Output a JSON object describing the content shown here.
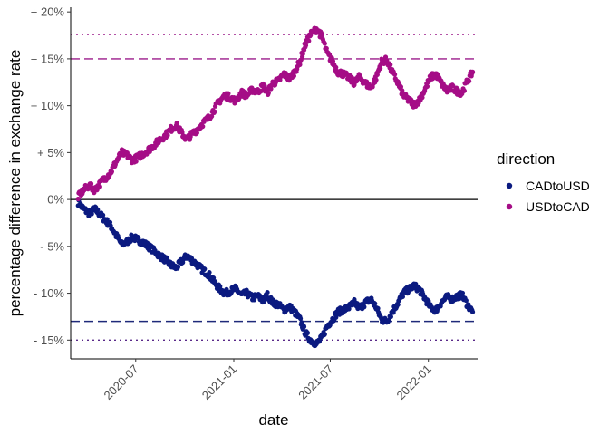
{
  "chart_data": {
    "type": "scatter",
    "title": "",
    "xlabel": "date",
    "ylabel": "percentage difference in exchange rate",
    "x_range": [
      "2020-03-01",
      "2022-04-05"
    ],
    "ylim": [
      -17.0,
      20.5
    ],
    "x_ticks": [
      {
        "date": "2020-07-01",
        "label": "2020-07"
      },
      {
        "date": "2021-01-01",
        "label": "2021-01"
      },
      {
        "date": "2021-07-01",
        "label": "2021-07"
      },
      {
        "date": "2022-01-01",
        "label": "2022-01"
      }
    ],
    "y_ticks": [
      {
        "value": 20,
        "label": "+ 20%"
      },
      {
        "value": 15,
        "label": "+ 15%"
      },
      {
        "value": 10,
        "label": "+ 10%"
      },
      {
        "value": 5,
        "label": "+ 5%"
      },
      {
        "value": 0,
        "label": "0%"
      },
      {
        "value": -5,
        "label": "- 5%"
      },
      {
        "value": -10,
        "label": "- 10%"
      },
      {
        "value": -15,
        "label": "- 15%"
      }
    ],
    "grid": false,
    "legend": {
      "title": "direction",
      "position": "right"
    },
    "reference_lines": [
      {
        "y": 0,
        "style": "solid",
        "color": "#000000"
      },
      {
        "y": 17.6,
        "style": "dotted",
        "color": "#9b1a8a"
      },
      {
        "y": 15.0,
        "style": "dashed",
        "color": "#9b1a8a"
      },
      {
        "y": -13.0,
        "style": "dashed",
        "color": "#1f2a7a"
      },
      {
        "y": -15.0,
        "style": "dotted",
        "color": "#5a2a8a"
      }
    ],
    "series": [
      {
        "name": "CADtoUSD",
        "color": "#0b1a80",
        "points": [
          [
            "2020-03-15",
            -0.3
          ],
          [
            "2020-03-25",
            -1.0
          ],
          [
            "2020-04-05",
            -1.5
          ],
          [
            "2020-04-15",
            -1.0
          ],
          [
            "2020-04-25",
            -1.6
          ],
          [
            "2020-05-05",
            -2.2
          ],
          [
            "2020-05-15",
            -2.8
          ],
          [
            "2020-05-25",
            -3.8
          ],
          [
            "2020-06-05",
            -4.8
          ],
          [
            "2020-06-15",
            -4.5
          ],
          [
            "2020-06-25",
            -4.0
          ],
          [
            "2020-07-05",
            -4.3
          ],
          [
            "2020-07-15",
            -4.6
          ],
          [
            "2020-07-25",
            -5.0
          ],
          [
            "2020-08-05",
            -5.5
          ],
          [
            "2020-08-15",
            -6.0
          ],
          [
            "2020-08-25",
            -6.4
          ],
          [
            "2020-09-05",
            -7.0
          ],
          [
            "2020-09-15",
            -7.3
          ],
          [
            "2020-09-25",
            -6.6
          ],
          [
            "2020-10-05",
            -6.0
          ],
          [
            "2020-10-15",
            -6.5
          ],
          [
            "2020-10-25",
            -7.0
          ],
          [
            "2020-11-05",
            -7.6
          ],
          [
            "2020-11-15",
            -8.0
          ],
          [
            "2020-11-25",
            -8.8
          ],
          [
            "2020-12-05",
            -9.5
          ],
          [
            "2020-12-15",
            -10.0
          ],
          [
            "2020-12-25",
            -9.8
          ],
          [
            "2021-01-05",
            -9.5
          ],
          [
            "2021-01-15",
            -10.2
          ],
          [
            "2021-01-25",
            -10.0
          ],
          [
            "2021-02-05",
            -10.5
          ],
          [
            "2021-02-15",
            -10.3
          ],
          [
            "2021-02-25",
            -10.8
          ],
          [
            "2021-03-05",
            -10.2
          ],
          [
            "2021-03-15",
            -11.0
          ],
          [
            "2021-03-25",
            -11.2
          ],
          [
            "2021-04-05",
            -11.8
          ],
          [
            "2021-04-15",
            -11.4
          ],
          [
            "2021-04-25",
            -12.0
          ],
          [
            "2021-05-05",
            -12.8
          ],
          [
            "2021-05-15",
            -14.2
          ],
          [
            "2021-05-25",
            -15.0
          ],
          [
            "2021-06-05",
            -15.4
          ],
          [
            "2021-06-15",
            -14.8
          ],
          [
            "2021-06-25",
            -13.5
          ],
          [
            "2021-07-05",
            -12.8
          ],
          [
            "2021-07-15",
            -12.0
          ],
          [
            "2021-07-25",
            -11.8
          ],
          [
            "2021-08-05",
            -11.5
          ],
          [
            "2021-08-15",
            -11.0
          ],
          [
            "2021-08-25",
            -11.6
          ],
          [
            "2021-09-05",
            -11.0
          ],
          [
            "2021-09-15",
            -10.6
          ],
          [
            "2021-09-25",
            -11.5
          ],
          [
            "2021-10-05",
            -12.8
          ],
          [
            "2021-10-15",
            -13.0
          ],
          [
            "2021-10-25",
            -12.0
          ],
          [
            "2021-11-05",
            -11.0
          ],
          [
            "2021-11-15",
            -10.0
          ],
          [
            "2021-11-25",
            -9.6
          ],
          [
            "2021-12-05",
            -9.2
          ],
          [
            "2021-12-15",
            -9.6
          ],
          [
            "2021-12-25",
            -10.5
          ],
          [
            "2022-01-05",
            -11.5
          ],
          [
            "2022-01-15",
            -11.8
          ],
          [
            "2022-01-25",
            -11.0
          ],
          [
            "2022-02-05",
            -10.4
          ],
          [
            "2022-02-15",
            -10.6
          ],
          [
            "2022-02-25",
            -10.3
          ],
          [
            "2022-03-05",
            -10.2
          ],
          [
            "2022-03-15",
            -11.2
          ],
          [
            "2022-03-25",
            -12.0
          ]
        ]
      },
      {
        "name": "USDtoCAD",
        "color": "#a50d86",
        "points": [
          [
            "2020-03-15",
            0.3
          ],
          [
            "2020-03-25",
            1.0
          ],
          [
            "2020-04-05",
            1.5
          ],
          [
            "2020-04-15",
            1.0
          ],
          [
            "2020-04-25",
            1.7
          ],
          [
            "2020-05-05",
            2.3
          ],
          [
            "2020-05-15",
            2.9
          ],
          [
            "2020-05-25",
            4.0
          ],
          [
            "2020-06-05",
            5.0
          ],
          [
            "2020-06-15",
            4.7
          ],
          [
            "2020-06-25",
            4.2
          ],
          [
            "2020-07-05",
            4.5
          ],
          [
            "2020-07-15",
            4.9
          ],
          [
            "2020-07-25",
            5.3
          ],
          [
            "2020-08-05",
            5.8
          ],
          [
            "2020-08-15",
            6.4
          ],
          [
            "2020-08-25",
            6.8
          ],
          [
            "2020-09-05",
            7.5
          ],
          [
            "2020-09-15",
            7.9
          ],
          [
            "2020-09-25",
            7.1
          ],
          [
            "2020-10-05",
            6.4
          ],
          [
            "2020-10-15",
            7.0
          ],
          [
            "2020-10-25",
            7.5
          ],
          [
            "2020-11-05",
            8.2
          ],
          [
            "2020-11-15",
            8.7
          ],
          [
            "2020-11-25",
            9.6
          ],
          [
            "2020-12-05",
            10.5
          ],
          [
            "2020-12-15",
            11.1
          ],
          [
            "2020-12-25",
            10.9
          ],
          [
            "2021-01-05",
            10.5
          ],
          [
            "2021-01-15",
            11.4
          ],
          [
            "2021-01-25",
            11.1
          ],
          [
            "2021-02-05",
            11.7
          ],
          [
            "2021-02-15",
            11.5
          ],
          [
            "2021-02-25",
            12.1
          ],
          [
            "2021-03-05",
            11.4
          ],
          [
            "2021-03-15",
            12.4
          ],
          [
            "2021-03-25",
            12.6
          ],
          [
            "2021-04-05",
            13.4
          ],
          [
            "2021-04-15",
            12.9
          ],
          [
            "2021-04-25",
            13.6
          ],
          [
            "2021-05-05",
            14.7
          ],
          [
            "2021-05-15",
            16.5
          ],
          [
            "2021-05-25",
            17.6
          ],
          [
            "2021-06-05",
            18.2
          ],
          [
            "2021-06-15",
            17.4
          ],
          [
            "2021-06-25",
            15.6
          ],
          [
            "2021-07-05",
            14.7
          ],
          [
            "2021-07-15",
            13.6
          ],
          [
            "2021-07-25",
            13.4
          ],
          [
            "2021-08-05",
            13.0
          ],
          [
            "2021-08-15",
            12.4
          ],
          [
            "2021-08-25",
            13.1
          ],
          [
            "2021-09-05",
            12.4
          ],
          [
            "2021-09-15",
            11.9
          ],
          [
            "2021-09-25",
            13.0
          ],
          [
            "2021-10-05",
            14.7
          ],
          [
            "2021-10-15",
            14.9
          ],
          [
            "2021-10-25",
            13.6
          ],
          [
            "2021-11-05",
            12.4
          ],
          [
            "2021-11-15",
            11.1
          ],
          [
            "2021-11-25",
            10.6
          ],
          [
            "2021-12-05",
            10.1
          ],
          [
            "2021-12-15",
            10.6
          ],
          [
            "2021-12-25",
            11.7
          ],
          [
            "2022-01-05",
            13.0
          ],
          [
            "2022-01-15",
            13.4
          ],
          [
            "2022-01-25",
            12.4
          ],
          [
            "2022-02-05",
            11.6
          ],
          [
            "2022-02-15",
            11.9
          ],
          [
            "2022-02-25",
            11.5
          ],
          [
            "2022-03-05",
            11.4
          ],
          [
            "2022-03-15",
            12.6
          ],
          [
            "2022-03-25",
            13.6
          ]
        ]
      }
    ]
  }
}
